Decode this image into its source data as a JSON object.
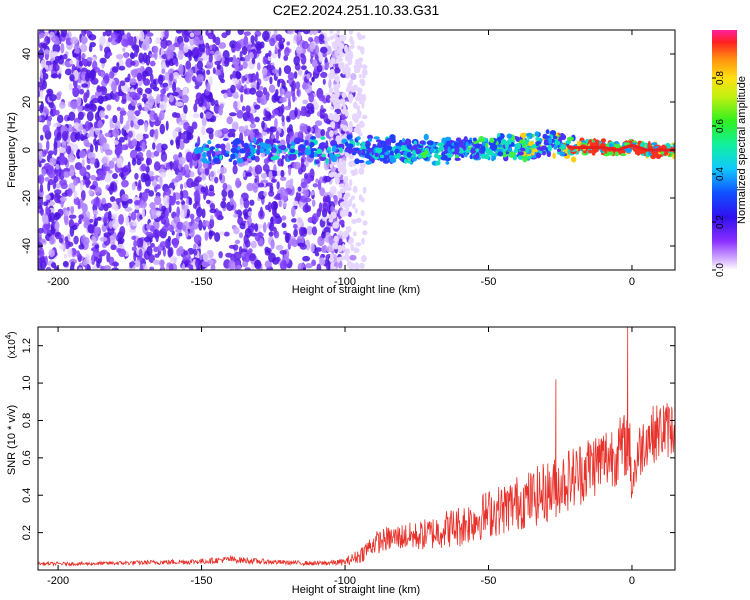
{
  "title": "C2E2.2024.251.10.33.G31",
  "colors": {
    "snr_line": "#e8312a",
    "points_dark": "#5a10e0",
    "points_light": "#c8a8ff",
    "band": "#2040ff",
    "band_center": "#e82020"
  },
  "chart_data": [
    {
      "type": "heatmap",
      "title": "C2E2.2024.251.10.33.G31",
      "xlabel": "Height of straight line (km)",
      "ylabel": "Frequency (Hz)",
      "xlim": [
        -207,
        15
      ],
      "ylim": [
        -50,
        50
      ],
      "xticks": [
        {
          "v": -200,
          "label": "-200"
        },
        {
          "v": -150,
          "label": "-150"
        },
        {
          "v": -100,
          "label": "-100"
        },
        {
          "v": -50,
          "label": "-50"
        },
        {
          "v": 0,
          "label": "0"
        }
      ],
      "yticks": [
        {
          "v": 40,
          "label": "40"
        },
        {
          "v": 20,
          "label": "20"
        },
        {
          "v": 0,
          "label": "0"
        },
        {
          "v": -20,
          "label": "-20"
        },
        {
          "v": -40,
          "label": "-40"
        }
      ],
      "colorbar": {
        "label": "Normalized spectral amplitude",
        "range": [
          0,
          1
        ],
        "ticks": [
          {
            "v": 0.0,
            "label": "0.0"
          },
          {
            "v": 0.2,
            "label": "0.2"
          },
          {
            "v": 0.4,
            "label": "0.4"
          },
          {
            "v": 0.6,
            "label": "0.6"
          },
          {
            "v": 0.8,
            "label": "0.8"
          }
        ]
      },
      "band": {
        "description_free": true,
        "x": [
          -95,
          -60,
          -40,
          -30,
          -25,
          -20,
          -10,
          -5,
          0,
          5,
          15
        ],
        "center_freq": [
          0,
          0,
          1,
          3,
          2,
          1,
          1,
          0,
          2,
          0,
          0
        ],
        "max_amplitude": [
          0.55,
          0.65,
          0.75,
          0.85,
          0.9,
          0.95,
          1.0,
          1.0,
          1.0,
          1.0,
          1.0
        ]
      }
    },
    {
      "type": "line",
      "xlabel": "Height of straight line (km)",
      "ylabel": "SNR (10 * v/v)",
      "ylabel_multiplier": "(x10",
      "ylabel_exponent": "4",
      "ylabel_multiplier_close": ")",
      "xlim": [
        -207,
        15
      ],
      "ylim": [
        0,
        13000
      ],
      "xticks": [
        {
          "v": -200,
          "label": "-200"
        },
        {
          "v": -150,
          "label": "-150"
        },
        {
          "v": -100,
          "label": "-100"
        },
        {
          "v": -50,
          "label": "-50"
        },
        {
          "v": 0,
          "label": "0"
        }
      ],
      "yticks": [
        {
          "v": 2000,
          "label": "0.2"
        },
        {
          "v": 4000,
          "label": "0.4"
        },
        {
          "v": 6000,
          "label": "0.6"
        },
        {
          "v": 8000,
          "label": "0.8"
        },
        {
          "v": 10000,
          "label": "1.0"
        },
        {
          "v": 12000,
          "label": "1.2"
        }
      ],
      "series": [
        {
          "x": [
            -207,
            -190,
            -170,
            -150,
            -140,
            -130,
            -120,
            -110,
            -100,
            -95,
            -90,
            -85,
            -80,
            -75,
            -70,
            -65,
            -60,
            -55,
            -50,
            -45,
            -40,
            -35,
            -30,
            -28,
            -26,
            -25,
            -20,
            -15,
            -10,
            -5,
            -2,
            -1,
            0,
            2,
            5,
            10,
            15
          ],
          "base": [
            300,
            300,
            350,
            400,
            500,
            400,
            350,
            300,
            350,
            600,
            1200,
            1400,
            1500,
            1500,
            1600,
            1800,
            1900,
            2200,
            2500,
            2700,
            3000,
            3200,
            3500,
            3600,
            3800,
            4000,
            4300,
            4800,
            5200,
            5600,
            6000,
            6200,
            4000,
            5500,
            6500,
            6800,
            7000
          ],
          "spread": [
            150,
            150,
            200,
            250,
            300,
            250,
            200,
            200,
            300,
            700,
            1000,
            1100,
            1200,
            1300,
            1500,
            1700,
            1900,
            2000,
            2200,
            2300,
            2500,
            2600,
            2800,
            2800,
            2800,
            2800,
            2900,
            3000,
            3000,
            3000,
            3000,
            3000,
            2500,
            2600,
            2600,
            2600,
            2600
          ],
          "peaks": [
            {
              "x": -26.5,
              "y": 10200
            },
            {
              "x": -1.5,
              "y": 13000
            },
            {
              "x": 11,
              "y": 8800
            },
            {
              "x": 14,
              "y": 8500
            }
          ]
        }
      ]
    }
  ]
}
